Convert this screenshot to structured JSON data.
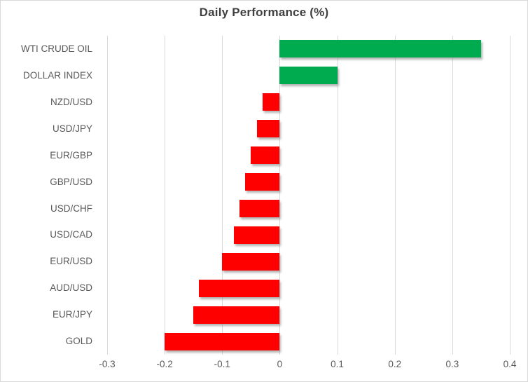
{
  "chart_data": {
    "type": "bar",
    "orientation": "horizontal",
    "title": "Daily Performance (%)",
    "categories": [
      "WTI CRUDE OIL",
      "DOLLAR INDEX",
      "NZD/USD",
      "USD/JPY",
      "EUR/GBP",
      "GBP/USD",
      "USD/CHF",
      "USD/CAD",
      "EUR/USD",
      "AUD/USD",
      "EUR/JPY",
      "GOLD"
    ],
    "values": [
      0.35,
      0.1,
      -0.03,
      -0.04,
      -0.05,
      -0.06,
      -0.07,
      -0.08,
      -0.1,
      -0.14,
      -0.15,
      -0.2
    ],
    "xlabel": "",
    "ylabel": "",
    "xlim": [
      -0.3,
      0.4
    ],
    "x_ticks": [
      -0.3,
      -0.2,
      -0.1,
      0,
      0.1,
      0.2,
      0.3,
      0.4
    ],
    "x_tick_labels": [
      "-0.3",
      "-0.2",
      "-0.1",
      "0",
      "0.1",
      "0.2",
      "0.3",
      "0.4"
    ],
    "grid": "vertical-on",
    "legend": "none",
    "colors": {
      "positive_bar": "#00AB4F",
      "negative_bar": "#FF0000",
      "gridline": "#D9D9D9",
      "title_text": "#404040",
      "axis_text": "#595959",
      "chart_border": "#D9D9D9",
      "background": "#FFFFFF"
    }
  }
}
